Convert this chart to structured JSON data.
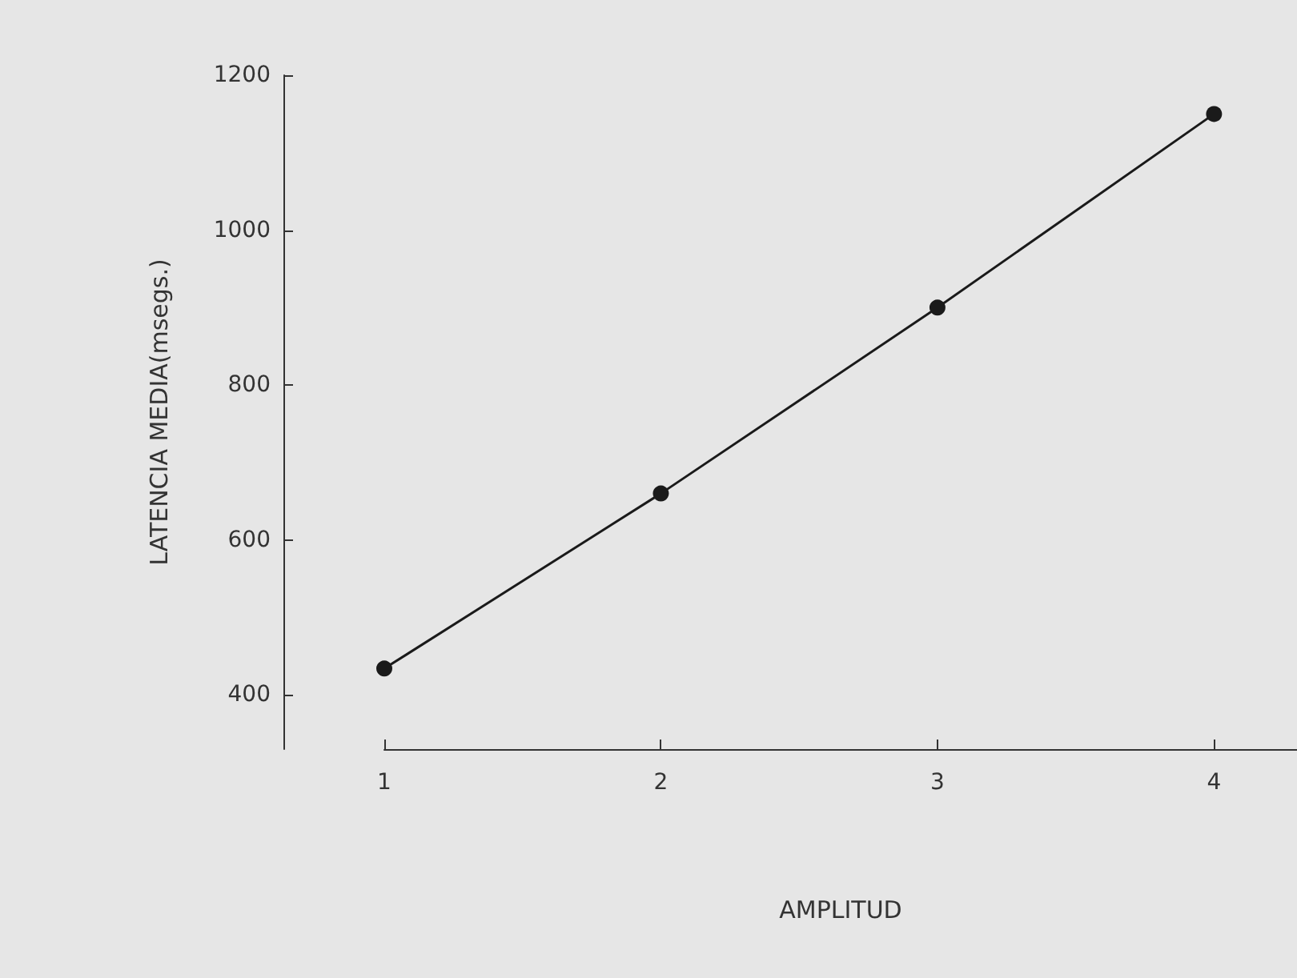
{
  "chart_data": {
    "type": "line",
    "xlabel": "AMPLITUD",
    "ylabel": "LATENCIA MEDIA(msegs.)",
    "x": [
      1,
      2,
      3,
      4
    ],
    "series": [
      {
        "color": "#1a1a1a",
        "values": [
          434,
          660,
          900,
          1150
        ]
      }
    ],
    "xlim": [
      1,
      4.3
    ],
    "xticks": [
      1,
      2,
      3,
      4
    ],
    "ylim": [
      330,
      1200
    ],
    "yticks": [
      400,
      600,
      800,
      1000,
      1200
    ],
    "grid": false,
    "marker": "circle",
    "line_style": "solid"
  }
}
